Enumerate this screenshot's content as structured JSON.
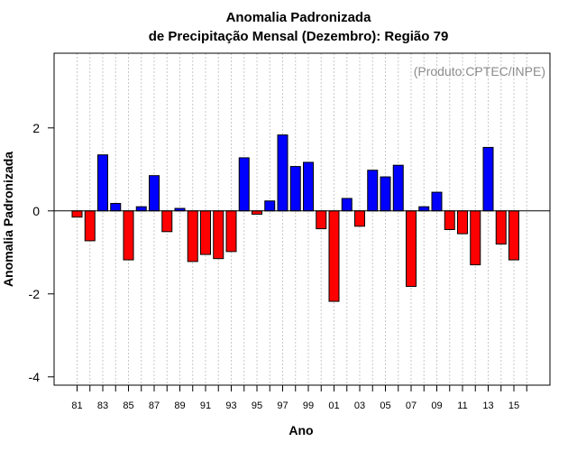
{
  "chart_data": {
    "type": "bar",
    "title_line1": "Anomalia Padronizada",
    "title_line2": "de Precipitação Mensal (Dezembro): Região 79",
    "xlabel": "Ano",
    "ylabel": "Anomalia Padronizada",
    "credit": "(Produto:CPTEC/INPE)",
    "ylim": [
      -4.2,
      3.8
    ],
    "yticks": [
      -4,
      -2,
      0,
      2
    ],
    "categories": [
      "81",
      "82",
      "83",
      "84",
      "85",
      "86",
      "87",
      "88",
      "89",
      "90",
      "91",
      "92",
      "93",
      "94",
      "95",
      "96",
      "97",
      "98",
      "99",
      "00",
      "01",
      "02",
      "03",
      "04",
      "05",
      "06",
      "07",
      "08",
      "09",
      "10",
      "11",
      "12",
      "13",
      "14",
      "15",
      "16"
    ],
    "xtick_labels": [
      "81",
      "83",
      "85",
      "87",
      "89",
      "91",
      "93",
      "95",
      "97",
      "99",
      "01",
      "03",
      "05",
      "07",
      "09",
      "11",
      "13",
      "15"
    ],
    "values": [
      -0.15,
      -0.72,
      1.35,
      0.18,
      -1.18,
      0.1,
      0.85,
      -0.5,
      0.06,
      -1.22,
      -1.05,
      -1.15,
      -0.98,
      1.28,
      -0.08,
      0.24,
      1.83,
      1.07,
      1.17,
      -0.43,
      -2.18,
      0.3,
      -0.37,
      0.98,
      0.82,
      1.1,
      -1.82,
      0.1,
      0.45,
      -0.45,
      -0.55,
      -1.3,
      1.53,
      -0.8,
      -1.18,
      null
    ],
    "colors": {
      "positive": "#0000ff",
      "negative": "#ff0000",
      "grid": "#c8c8c8"
    }
  }
}
